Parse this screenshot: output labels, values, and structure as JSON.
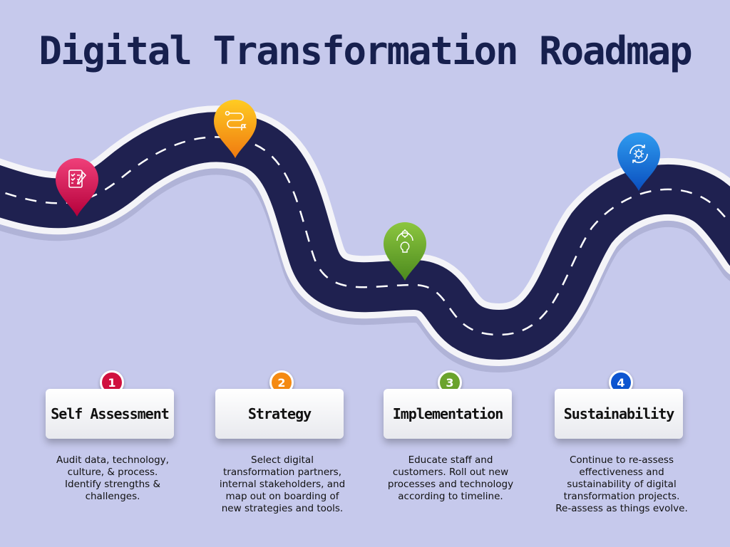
{
  "title": "Digital Transformation Roadmap",
  "colors": {
    "background": "#c6c9ec",
    "road": "#1f2150",
    "road_edge": "#f4f4f8",
    "title": "#17204e"
  },
  "pins": [
    {
      "icon": "checklist-icon",
      "color_top": "#f0407a",
      "color_bottom": "#b4003a"
    },
    {
      "icon": "route-icon",
      "color_top": "#ffcc22",
      "color_bottom": "#f07a10"
    },
    {
      "icon": "lightbulb-gear-icon",
      "color_top": "#8cc63f",
      "color_bottom": "#4c8a1e"
    },
    {
      "icon": "gear-cycle-icon",
      "color_top": "#2f9cf0",
      "color_bottom": "#0a4fbf"
    }
  ],
  "stages": [
    {
      "number": "1",
      "label": "Self Assessment",
      "color": "#d0103e",
      "lines": [
        "Audit data, technology,",
        "culture, & process.",
        "Identify strengths &",
        "challenges."
      ]
    },
    {
      "number": "2",
      "label": "Strategy",
      "color": "#f58a12",
      "lines": [
        "Select digital",
        "transformation partners,",
        "internal stakeholders, and",
        "map out on boarding of",
        "new strategies and tools."
      ]
    },
    {
      "number": "3",
      "label": "Implementation",
      "color": "#6aa32c",
      "lines": [
        "Educate staff and",
        "customers. Roll out new",
        "processes and technology",
        "according to timeline."
      ]
    },
    {
      "number": "4",
      "label": "Sustainability",
      "color": "#0d55d0",
      "lines": [
        "Continue to re-assess",
        "effectiveness and",
        "sustainability of digital",
        "transformation projects.",
        "Re-assess as things evolve."
      ]
    }
  ]
}
